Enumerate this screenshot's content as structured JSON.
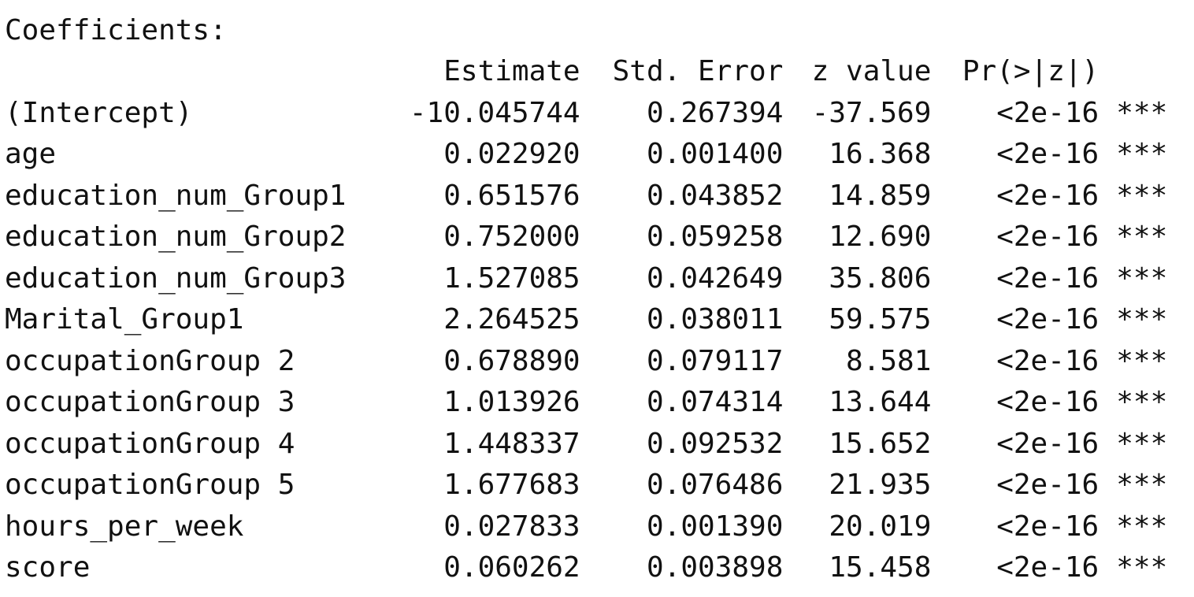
{
  "heading": "Coefficients:",
  "columns": {
    "estimate": "Estimate",
    "std_error": "Std. Error",
    "z_value": "z value",
    "p_value": "Pr(>|z|)"
  },
  "rows": [
    {
      "name": "(Intercept)",
      "estimate": "-10.045744",
      "std_error": "0.267394",
      "z_value": "-37.569",
      "p_value": "<2e-16",
      "signif": "***"
    },
    {
      "name": "age",
      "estimate": "0.022920",
      "std_error": "0.001400",
      "z_value": "16.368",
      "p_value": "<2e-16",
      "signif": "***"
    },
    {
      "name": "education_num_Group1",
      "estimate": "0.651576",
      "std_error": "0.043852",
      "z_value": "14.859",
      "p_value": "<2e-16",
      "signif": "***"
    },
    {
      "name": "education_num_Group2",
      "estimate": "0.752000",
      "std_error": "0.059258",
      "z_value": "12.690",
      "p_value": "<2e-16",
      "signif": "***"
    },
    {
      "name": "education_num_Group3",
      "estimate": "1.527085",
      "std_error": "0.042649",
      "z_value": "35.806",
      "p_value": "<2e-16",
      "signif": "***"
    },
    {
      "name": "Marital_Group1",
      "estimate": "2.264525",
      "std_error": "0.038011",
      "z_value": "59.575",
      "p_value": "<2e-16",
      "signif": "***"
    },
    {
      "name": "occupationGroup 2",
      "estimate": "0.678890",
      "std_error": "0.079117",
      "z_value": "8.581",
      "p_value": "<2e-16",
      "signif": "***"
    },
    {
      "name": "occupationGroup 3",
      "estimate": "1.013926",
      "std_error": "0.074314",
      "z_value": "13.644",
      "p_value": "<2e-16",
      "signif": "***"
    },
    {
      "name": "occupationGroup 4",
      "estimate": "1.448337",
      "std_error": "0.092532",
      "z_value": "15.652",
      "p_value": "<2e-16",
      "signif": "***"
    },
    {
      "name": "occupationGroup 5",
      "estimate": "1.677683",
      "std_error": "0.076486",
      "z_value": "21.935",
      "p_value": "<2e-16",
      "signif": "***"
    },
    {
      "name": "hours_per_week",
      "estimate": "0.027833",
      "std_error": "0.001390",
      "z_value": "20.019",
      "p_value": "<2e-16",
      "signif": "***"
    },
    {
      "name": "score",
      "estimate": "0.060262",
      "std_error": "0.003898",
      "z_value": "15.458",
      "p_value": "<2e-16",
      "signif": "***"
    }
  ]
}
